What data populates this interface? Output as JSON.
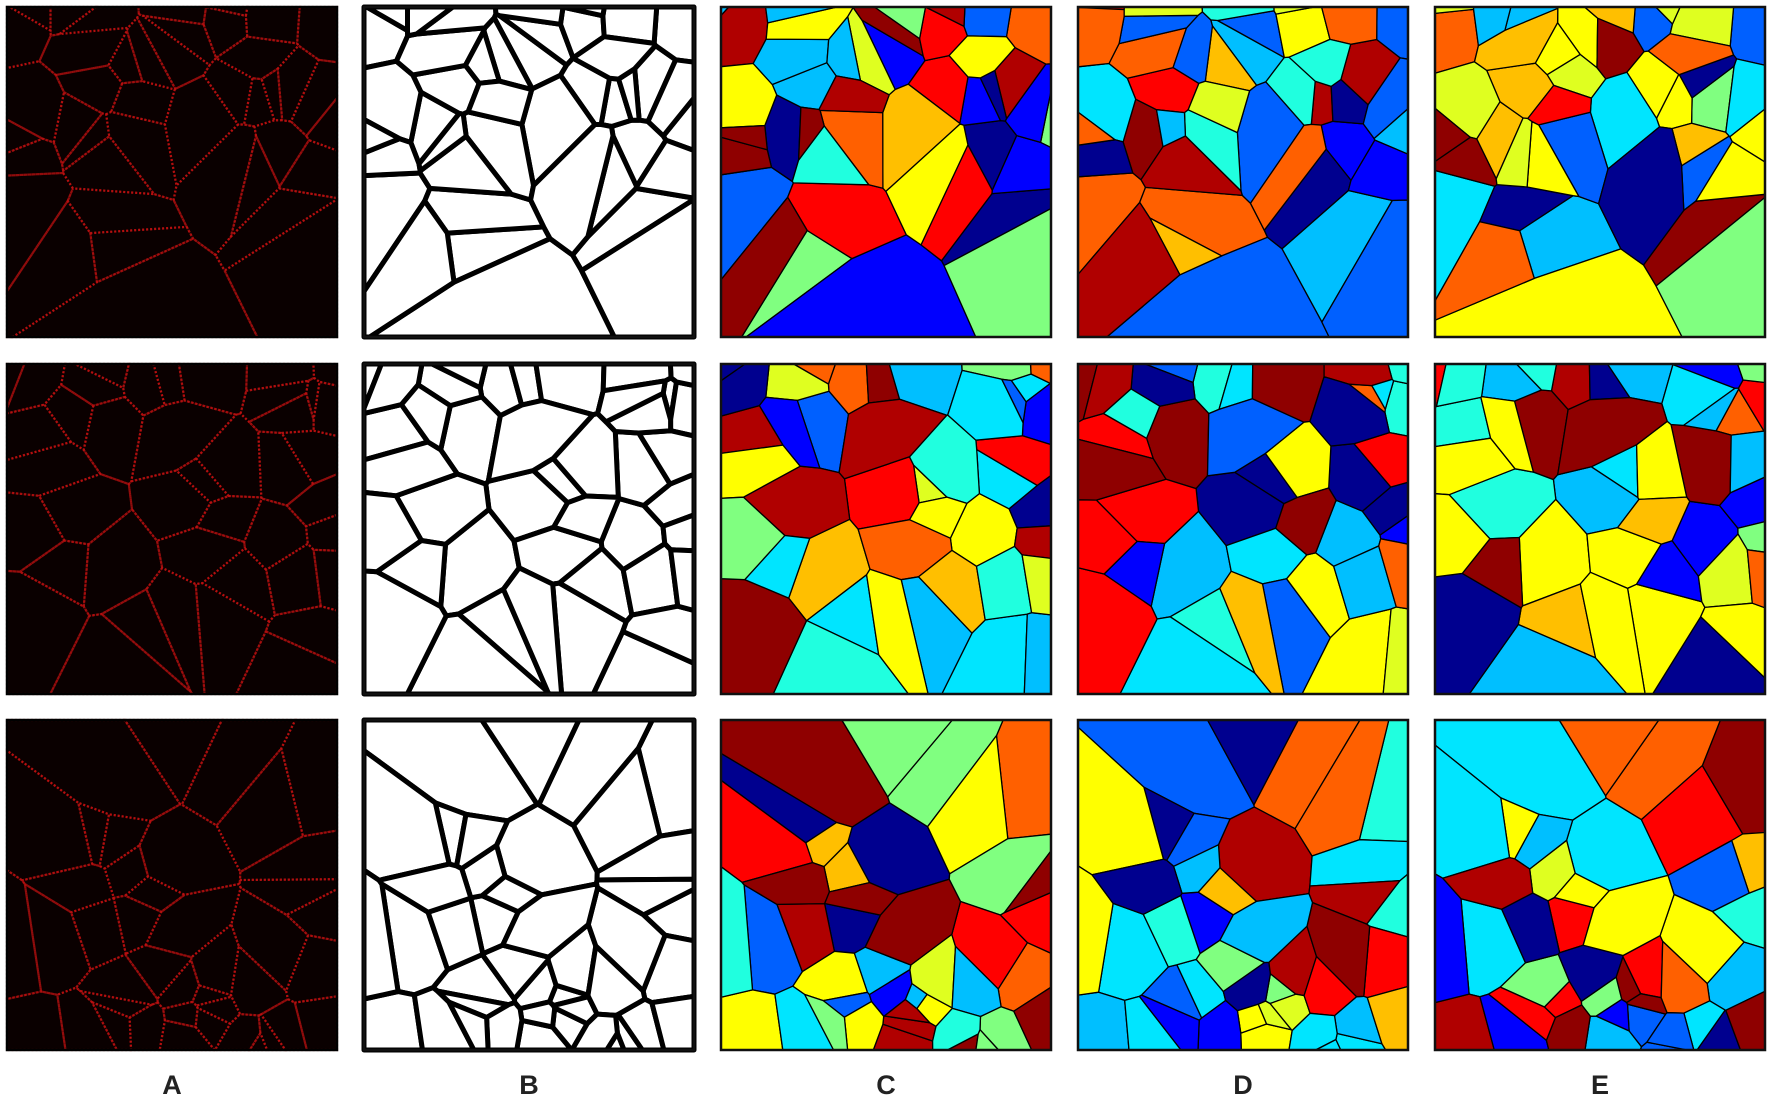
{
  "column_labels": [
    "A",
    "B",
    "C",
    "D",
    "E"
  ]
}
